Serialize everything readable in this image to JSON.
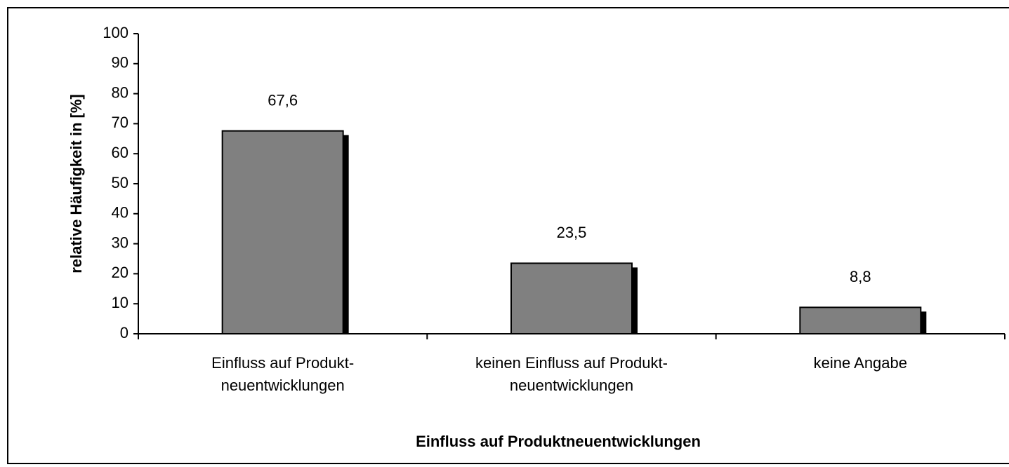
{
  "chart_data": {
    "type": "bar",
    "categories": [
      "Einfluss auf Produkt-\nneuentwicklungen",
      "keinen Einfluss auf Produkt-\nneuentwicklungen",
      "keine Angabe"
    ],
    "values": [
      67.6,
      23.5,
      8.8
    ],
    "value_labels": [
      "67,6",
      "23,5",
      "8,8"
    ],
    "color": "#808080",
    "ylim": [
      0,
      100
    ],
    "yticks": [
      0,
      10,
      20,
      30,
      40,
      50,
      60,
      70,
      80,
      90,
      100
    ],
    "ylabel": "relative Häufigkeit in [%]",
    "xlabel": "Einfluss auf Produktneuentwicklungen",
    "grid": false
  }
}
